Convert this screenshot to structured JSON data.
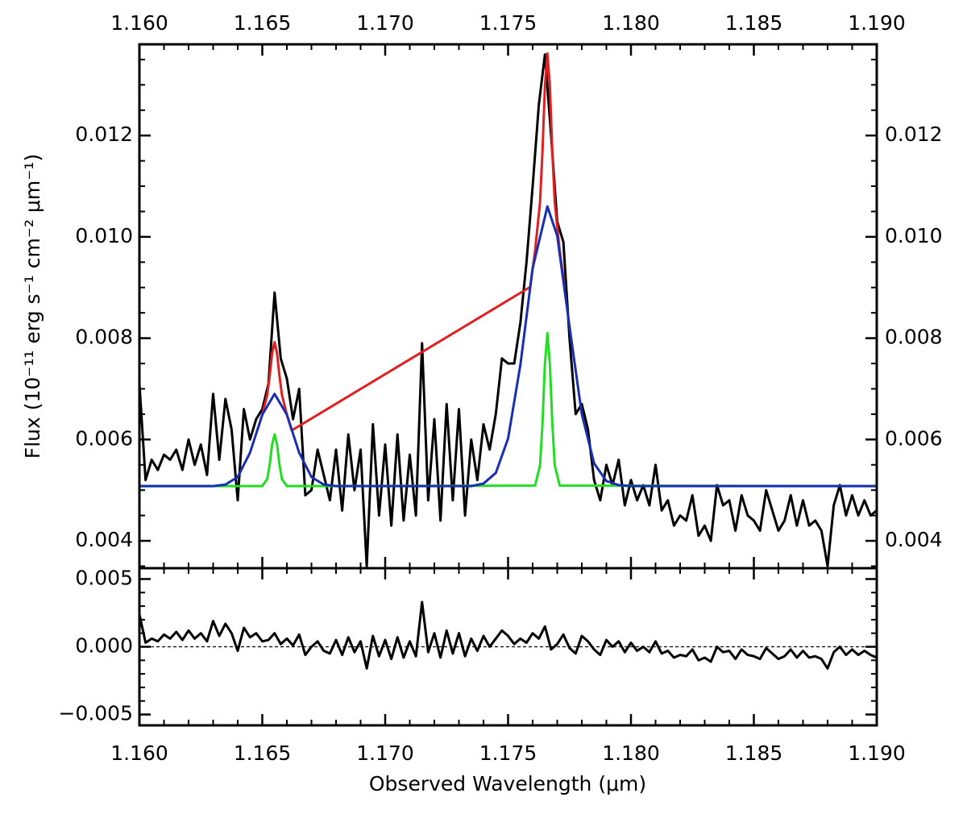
{
  "chart_data": [
    {
      "type": "line",
      "ylabel": "Flux (10⁻¹¹ erg s⁻¹ cm⁻² μm⁻¹)",
      "xlim": [
        1.16,
        1.19
      ],
      "xticks": [
        {
          "value": 1.16,
          "label": "1.160"
        },
        1.165,
        {
          "value": 1.17,
          "label": "1.170"
        },
        1.175,
        {
          "value": 1.18,
          "label": "1.180"
        },
        1.185,
        {
          "value": 1.19,
          "label": "1.190"
        }
      ],
      "ylim": [
        0.00346,
        0.0138
      ],
      "yticks": [
        0.004,
        0.006,
        0.008,
        {
          "value": 0.01,
          "label": "0.010"
        },
        0.012
      ],
      "xminor": 5,
      "yminor": 4,
      "series": [
        {
          "color": "#000000",
          "x": [
            1.16,
            1.16025,
            1.1605,
            1.16075,
            1.161,
            1.16125,
            1.1615,
            1.16175,
            1.162,
            1.16225,
            1.1625,
            1.16275,
            1.163,
            1.16325,
            1.1635,
            1.16375,
            1.164,
            1.16425,
            1.1645,
            1.16475,
            1.165,
            1.16525,
            1.1655,
            1.16575,
            1.166,
            1.16625,
            1.1665,
            1.16675,
            1.167,
            1.16725,
            1.1675,
            1.16775,
            1.168,
            1.16825,
            1.1685,
            1.16875,
            1.169,
            1.16925,
            1.1695,
            1.16975,
            1.17,
            1.17025,
            1.1705,
            1.17075,
            1.171,
            1.17125,
            1.1715,
            1.17175,
            1.172,
            1.17225,
            1.1725,
            1.17275,
            1.173,
            1.17325,
            1.1735,
            1.17375,
            1.174,
            1.17425,
            1.1745,
            1.17475,
            1.175,
            1.17525,
            1.1755,
            1.17575,
            1.176,
            1.17625,
            1.1765,
            1.17675,
            1.177,
            1.17725,
            1.1775,
            1.17775,
            1.178,
            1.17825,
            1.1785,
            1.17875,
            1.179,
            1.17925,
            1.1795,
            1.17975,
            1.18,
            1.18025,
            1.1805,
            1.18075,
            1.181,
            1.18125,
            1.1815,
            1.18175,
            1.182,
            1.18225,
            1.1825,
            1.18275,
            1.183,
            1.18325,
            1.1835,
            1.18375,
            1.184,
            1.18425,
            1.1845,
            1.18475,
            1.185,
            1.18525,
            1.1855,
            1.18575,
            1.186,
            1.18625,
            1.1865,
            1.18675,
            1.187,
            1.18725,
            1.1875,
            1.18775,
            1.188,
            1.18825,
            1.1885,
            1.18875,
            1.189,
            1.18925,
            1.1895,
            1.18975,
            1.19
          ],
          "values": [
            0.0071,
            0.0052,
            0.0056,
            0.0054,
            0.0057,
            0.0056,
            0.0058,
            0.0054,
            0.006,
            0.0055,
            0.0059,
            0.0053,
            0.0069,
            0.0056,
            0.0068,
            0.0062,
            0.0048,
            0.0066,
            0.006,
            0.0064,
            0.0066,
            0.0071,
            0.0089,
            0.0076,
            0.0072,
            0.0064,
            0.007,
            0.0049,
            0.005,
            0.0058,
            0.0053,
            0.0048,
            0.0058,
            0.0046,
            0.0061,
            0.005,
            0.0058,
            0.0035,
            0.0063,
            0.0045,
            0.0059,
            0.0043,
            0.0061,
            0.0044,
            0.0057,
            0.0045,
            0.0079,
            0.0048,
            0.0064,
            0.0044,
            0.0067,
            0.0048,
            0.0066,
            0.0045,
            0.006,
            0.0052,
            0.0063,
            0.0058,
            0.0065,
            0.0076,
            0.0075,
            0.0075,
            0.0083,
            0.0095,
            0.011,
            0.0126,
            0.0136,
            0.012,
            0.0103,
            0.0099,
            0.008,
            0.0065,
            0.0067,
            0.0062,
            0.0052,
            0.0048,
            0.0055,
            0.0051,
            0.0056,
            0.0047,
            0.0052,
            0.0048,
            0.0051,
            0.0047,
            0.0055,
            0.0046,
            0.0048,
            0.0043,
            0.0045,
            0.0044,
            0.0049,
            0.0041,
            0.0043,
            0.004,
            0.0051,
            0.0047,
            0.0048,
            0.0042,
            0.0049,
            0.0045,
            0.0044,
            0.0042,
            0.005,
            0.0046,
            0.0042,
            0.0044,
            0.0049,
            0.0043,
            0.0048,
            0.0043,
            0.0044,
            0.0042,
            0.0035,
            0.0047,
            0.0051,
            0.0045,
            0.0049,
            0.0045,
            0.0048,
            0.0045,
            0.0046
          ]
        },
        {
          "color": "#22dd22",
          "x": [
            1.16,
            1.165,
            1.1652,
            1.1653,
            1.1654,
            1.1655,
            1.1656,
            1.1657,
            1.1658,
            1.166,
            1.1761,
            1.1763,
            1.1764,
            1.1765,
            1.1766,
            1.1767,
            1.1768,
            1.1769,
            1.1771,
            1.19
          ],
          "values": [
            0.00508,
            0.00508,
            0.00522,
            0.0055,
            0.0059,
            0.0061,
            0.0059,
            0.0055,
            0.00522,
            0.00508,
            0.00509,
            0.00549,
            0.00632,
            0.0075,
            0.0081,
            0.0075,
            0.00632,
            0.00549,
            0.00509,
            0.00508
          ]
        },
        {
          "color": "#e02020",
          "x": [
            1.1648,
            1.165,
            1.1652,
            1.1653,
            1.1654,
            1.1655,
            1.1656,
            1.1657,
            1.1658,
            1.166,
            1.1662,
            1.1759,
            1.1761,
            1.1763,
            1.1764,
            1.1765,
            1.1766,
            1.1767,
            1.1768,
            1.1769,
            1.1771,
            1.1773
          ],
          "values": [
            0.00618,
            0.00649,
            0.00688,
            0.00725,
            0.0077,
            0.00792,
            0.0077,
            0.00725,
            0.00688,
            0.00649,
            0.00618,
            0.00901,
            0.00973,
            0.01068,
            0.01169,
            0.01298,
            0.01362,
            0.01298,
            0.01169,
            0.01068,
            0.00973,
            0.00901
          ]
        },
        {
          "color": "#1a2fb0",
          "x": [
            1.16,
            1.162,
            1.163,
            1.1635,
            1.164,
            1.1645,
            1.165,
            1.1655,
            1.166,
            1.1665,
            1.167,
            1.1675,
            1.168,
            1.17,
            1.173,
            1.1735,
            1.174,
            1.1745,
            1.175,
            1.1755,
            1.176,
            1.1766,
            1.177,
            1.1775,
            1.178,
            1.1785,
            1.179,
            1.1795,
            1.18,
            1.19
          ],
          "values": [
            0.00508,
            0.00508,
            0.00508,
            0.00511,
            0.00526,
            0.00574,
            0.00649,
            0.0069,
            0.00649,
            0.00574,
            0.00526,
            0.00511,
            0.00508,
            0.00508,
            0.00508,
            0.00508,
            0.00513,
            0.00534,
            0.00602,
            0.00747,
            0.00938,
            0.0106,
            0.01002,
            0.00823,
            0.0065,
            0.00553,
            0.00518,
            0.0051,
            0.00508,
            0.00508
          ]
        }
      ]
    },
    {
      "type": "line",
      "xlabel": "Observed Wavelength (μm)",
      "xlim": [
        1.16,
        1.19
      ],
      "xticks": [
        {
          "value": 1.16,
          "label": "1.160"
        },
        1.165,
        {
          "value": 1.17,
          "label": "1.170"
        },
        1.175,
        {
          "value": 1.18,
          "label": "1.180"
        },
        1.185,
        {
          "value": 1.19,
          "label": "1.190"
        }
      ],
      "ylim": [
        -0.0058,
        0.0058
      ],
      "yticks": [
        {
          "value": -0.005,
          "label": "−0.005"
        },
        {
          "value": 0,
          "label": "0.000"
        },
        0.005
      ],
      "xminor": 5,
      "yminor": 5,
      "hline": 0,
      "series": [
        {
          "color": "#000000",
          "x": [
            1.16,
            1.16025,
            1.1605,
            1.16075,
            1.161,
            1.16125,
            1.1615,
            1.16175,
            1.162,
            1.16225,
            1.1625,
            1.16275,
            1.163,
            1.16325,
            1.1635,
            1.16375,
            1.164,
            1.16425,
            1.1645,
            1.16475,
            1.165,
            1.16525,
            1.1655,
            1.16575,
            1.166,
            1.16625,
            1.1665,
            1.16675,
            1.167,
            1.16725,
            1.1675,
            1.16775,
            1.168,
            1.16825,
            1.1685,
            1.16875,
            1.169,
            1.16925,
            1.1695,
            1.16975,
            1.17,
            1.17025,
            1.1705,
            1.17075,
            1.171,
            1.17125,
            1.1715,
            1.17175,
            1.172,
            1.17225,
            1.1725,
            1.17275,
            1.173,
            1.17325,
            1.1735,
            1.17375,
            1.174,
            1.17425,
            1.1745,
            1.17475,
            1.175,
            1.17525,
            1.1755,
            1.17575,
            1.176,
            1.17625,
            1.1765,
            1.17675,
            1.177,
            1.17725,
            1.1775,
            1.17775,
            1.178,
            1.17825,
            1.1785,
            1.17875,
            1.179,
            1.17925,
            1.1795,
            1.17975,
            1.18,
            1.18025,
            1.1805,
            1.18075,
            1.181,
            1.18125,
            1.1815,
            1.18175,
            1.182,
            1.18225,
            1.1825,
            1.18275,
            1.183,
            1.18325,
            1.1835,
            1.18375,
            1.184,
            1.18425,
            1.1845,
            1.18475,
            1.185,
            1.18525,
            1.1855,
            1.18575,
            1.186,
            1.18625,
            1.1865,
            1.18675,
            1.187,
            1.18725,
            1.1875,
            1.18775,
            1.188,
            1.18825,
            1.1885,
            1.18875,
            1.189,
            1.18925,
            1.1895,
            1.18975,
            1.19
          ],
          "values": [
            0.0024,
            0.0003,
            0.0006,
            0.0004,
            0.0009,
            0.0006,
            0.0011,
            0.0005,
            0.0012,
            0.0006,
            0.001,
            0.0004,
            0.0019,
            0.0008,
            0.0017,
            0.001,
            -0.0003,
            0.0014,
            0.0007,
            0.001,
            0.0004,
            0.0005,
            0.001,
            0.0002,
            0.0006,
            0.0001,
            0.0009,
            -0.0006,
            0,
            0.0004,
            -0.0003,
            -0.0005,
            0.0005,
            -0.0006,
            0.0007,
            -0.0004,
            0.0004,
            -0.0016,
            0.0008,
            -0.0007,
            0.0005,
            -0.0009,
            0.0007,
            -0.0008,
            0.0004,
            -0.0007,
            0.0033,
            -0.0004,
            0.001,
            -0.0008,
            0.0012,
            -0.0005,
            0.001,
            -0.0007,
            0.0006,
            -0.0003,
            0.0008,
            0,
            0.0006,
            0.0012,
            0.0008,
            0.0002,
            0.0006,
            0.0003,
            0.001,
            0.0006,
            0.0015,
            -0.0002,
            0.0002,
            0.0009,
            -0.0001,
            -0.0005,
            0.0008,
            0.0004,
            -0.0002,
            -0.0006,
            0.0005,
            0,
            0.0004,
            -0.0004,
            0.0003,
            -0.0003,
            0,
            -0.0004,
            0.0004,
            -0.0005,
            -0.0003,
            -0.0008,
            -0.0006,
            -0.0007,
            -0.0002,
            -0.001,
            -0.0008,
            -0.0011,
            0,
            -0.0004,
            -0.0003,
            -0.0009,
            -0.0002,
            -0.0006,
            -0.0007,
            -0.0009,
            -0.0001,
            -0.0005,
            -0.0009,
            -0.0007,
            -0.0002,
            -0.0008,
            -0.0003,
            -0.0008,
            -0.0007,
            -0.0009,
            -0.0016,
            -0.0004,
            0,
            -0.0006,
            -0.0002,
            -0.0006,
            -0.0003,
            -0.0006,
            -0.0008
          ]
        }
      ]
    }
  ]
}
